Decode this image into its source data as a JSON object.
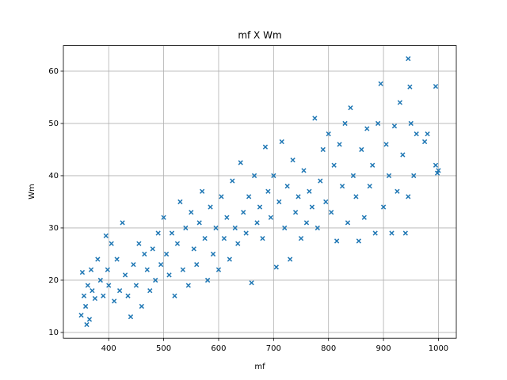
{
  "chart_data": {
    "type": "scatter",
    "title": "mf X Wm",
    "xlabel": "mf",
    "ylabel": "Wm",
    "marker_color": "#1f77b4",
    "grid": true,
    "xlim": [
      317.5,
      1032.5
    ],
    "ylim": [
      8.9,
      64.9
    ],
    "xticks": [
      400,
      500,
      600,
      700,
      800,
      900,
      1000
    ],
    "yticks": [
      10,
      20,
      30,
      40,
      50,
      60
    ],
    "x": [
      352,
      355,
      358,
      360,
      362,
      365,
      350,
      368,
      370,
      375,
      380,
      385,
      390,
      395,
      398,
      400,
      405,
      410,
      415,
      420,
      425,
      430,
      435,
      440,
      445,
      450,
      455,
      460,
      465,
      470,
      475,
      480,
      485,
      490,
      495,
      500,
      505,
      510,
      515,
      520,
      525,
      530,
      535,
      540,
      545,
      550,
      555,
      560,
      565,
      570,
      575,
      580,
      585,
      590,
      595,
      600,
      605,
      610,
      615,
      620,
      625,
      630,
      635,
      640,
      645,
      650,
      655,
      660,
      665,
      670,
      675,
      680,
      685,
      690,
      695,
      700,
      705,
      710,
      715,
      720,
      725,
      730,
      735,
      740,
      745,
      750,
      755,
      760,
      765,
      770,
      775,
      780,
      785,
      790,
      795,
      800,
      805,
      810,
      815,
      820,
      825,
      830,
      835,
      840,
      845,
      850,
      855,
      860,
      865,
      870,
      875,
      880,
      885,
      890,
      895,
      900,
      905,
      910,
      915,
      920,
      925,
      930,
      935,
      940,
      945,
      948,
      950,
      955,
      960,
      975,
      980,
      995,
      1000,
      998,
      995,
      945
    ],
    "values": [
      21.5,
      17,
      15,
      11.5,
      19,
      12.5,
      13.3,
      22,
      18,
      16.5,
      24,
      20,
      17,
      28.5,
      22,
      19,
      27,
      16,
      24,
      18,
      31,
      21,
      17,
      13,
      23,
      19,
      27,
      15,
      25,
      22,
      18,
      26,
      20,
      29,
      23,
      32,
      25,
      21,
      29,
      17,
      27,
      35,
      22,
      30,
      19,
      33,
      26,
      23,
      31,
      37,
      28,
      20,
      34,
      25,
      30,
      22,
      36,
      28,
      32,
      24,
      39,
      30,
      27,
      42.5,
      33,
      29,
      36,
      19.5,
      40,
      31,
      34,
      28,
      45.5,
      37,
      32,
      40,
      22.5,
      35,
      46.5,
      30,
      38,
      24,
      43,
      33,
      36,
      28,
      41,
      31,
      37,
      34,
      51,
      30,
      39,
      45,
      35,
      48,
      33,
      42,
      27.5,
      46,
      38,
      50,
      31,
      53,
      40,
      36,
      27.5,
      45,
      32,
      49,
      38,
      42,
      29,
      50,
      57.6,
      34,
      46,
      40,
      29,
      49.5,
      37,
      54,
      44,
      29,
      62.4,
      57,
      50,
      40,
      48,
      46.5,
      48,
      57.1,
      41,
      40.5,
      42,
      36
    ]
  }
}
